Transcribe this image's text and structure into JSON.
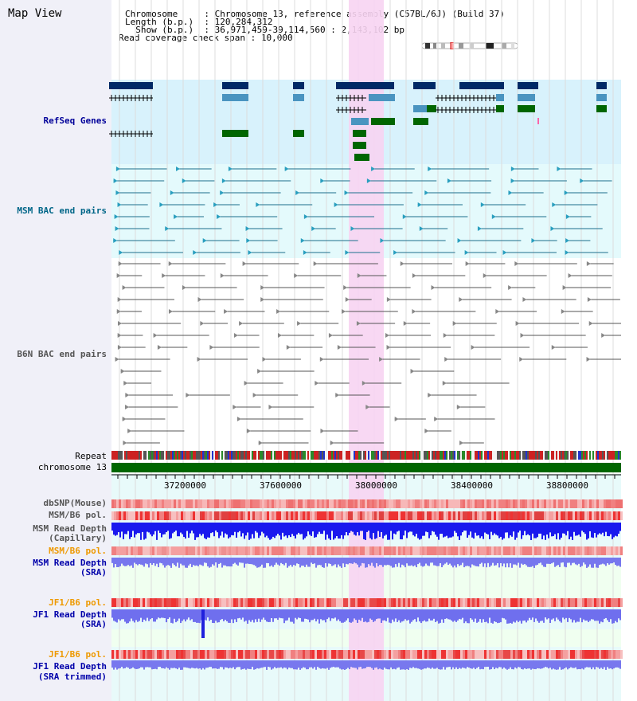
{
  "view_title": "Map View",
  "header": {
    "rows": [
      {
        "key": "Chromosome     ",
        "value": "Chromosome 13, reference assembly (C57BL/6J) (Build 37)"
      },
      {
        "key": "Length (b.p.)  ",
        "value": "120,284,312"
      },
      {
        "key": "  Show (b.p.)  ",
        "value": "36,971,459-39,114,560 : 2,143,102 bp"
      },
      {
        "key": "Read coverage check span ",
        "value": "10,000"
      }
    ]
  },
  "tracks": {
    "refseq": "RefSeq Genes",
    "msm_bac": "MSM BAC end pairs",
    "b6n_bac": "B6N BAC end pairs",
    "repeat": "Repeat",
    "chromosome": "chromosome 13",
    "dbsnp": "dbSNP(Mouse)",
    "msm_b6_pol_1": "MSM/B6 pol.",
    "msm_read_depth_cap": "MSM Read Depth",
    "capillary": "(Capillary)",
    "msm_b6_pol_2": "MSM/B6 pol.",
    "msm_read_depth_sra": "MSM Read Depth",
    "sra_1": "(SRA)",
    "jf1_b6_pol_1": "JF1/B6 pol.",
    "jf1_read_depth": "JF1 Read Depth",
    "sra_2": "(SRA)",
    "jf1_b6_pol_2": "JF1/B6 pol.",
    "jf1_read_depth_trim": "JF1 Read Depth",
    "sra_trimmed": "(SRA trimmed)"
  },
  "ruler": {
    "ticks": [
      "37200000",
      "37600000",
      "38000000",
      "38400000",
      "38800000"
    ]
  },
  "colors": {
    "refseq_label": "#000099",
    "msm_label": "#006688",
    "b6n_label": "#555555",
    "orange_label": "#ee9900",
    "blue_label": "#0000aa",
    "highlight": "#f7d4f2",
    "refseq_bg": "#d8f2fc",
    "msm_bg": "#e4fafc",
    "chrom_green": "#006600"
  }
}
